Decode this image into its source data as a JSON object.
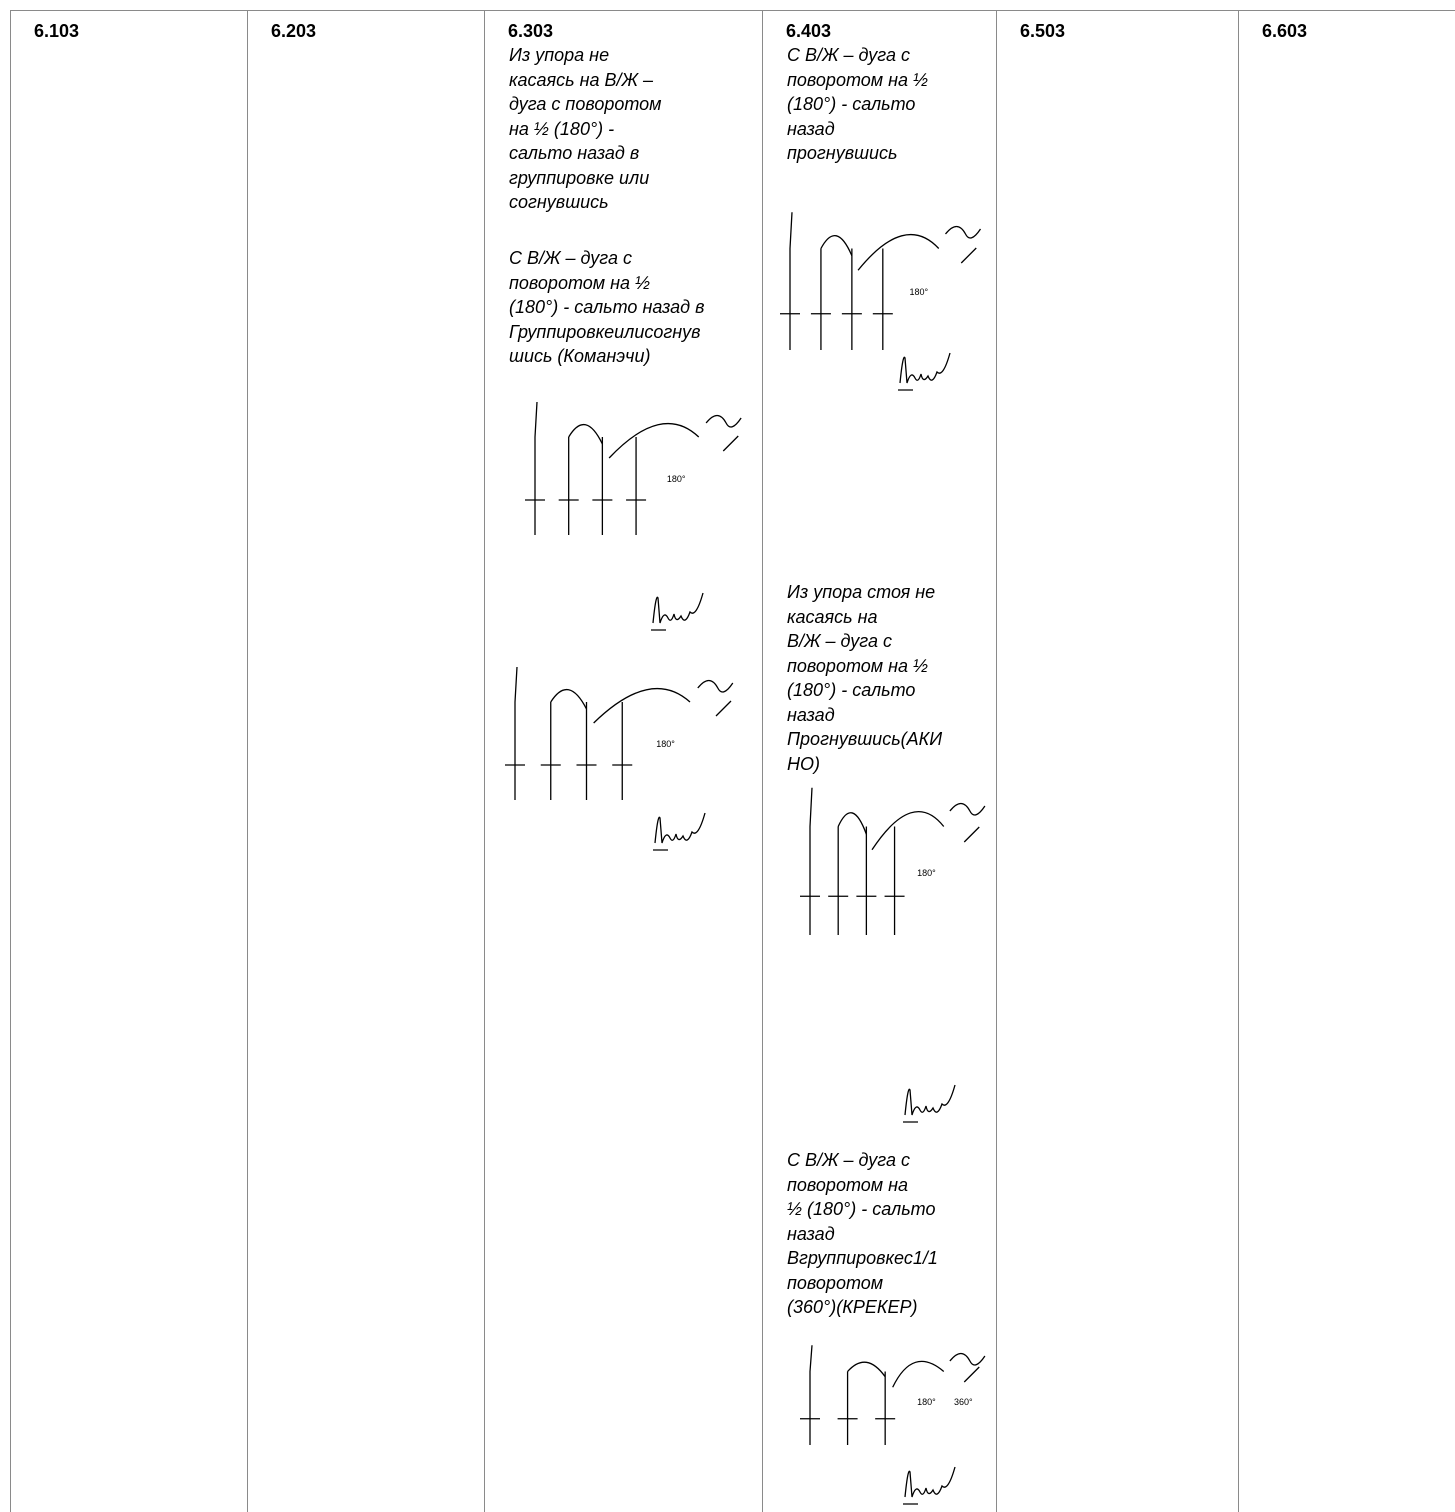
{
  "table": {
    "columns": [
      {
        "code": "6.103"
      },
      {
        "code": "6.203"
      },
      {
        "code": "6.303",
        "entries": [
          {
            "lines": [
              "Из упора не",
              "касаясь на В/Ж –",
              "дуга с поворотом",
              "на ½ (180°) -",
              "сальто назад в",
              "группировке или",
              "согнувшись"
            ]
          },
          {
            "lines": [
              "С В/Ж – дуга с",
              "поворотом на ½",
              "(180°) - сальто назад в",
              "Группировкеилисогнув",
              "шись (Команэчи)"
            ]
          }
        ],
        "figure_labels": [
          "180°",
          "180°"
        ]
      },
      {
        "code": "6.403",
        "entries": [
          {
            "lines": [
              "С В/Ж – дуга с",
              "поворотом на ½",
              "(180°) - сальто",
              "назад",
              "прогнувшись"
            ]
          },
          {
            "lines": [
              "Из упора стоя не",
              "касаясь на",
              "В/Ж – дуга с",
              "поворотом на ½",
              "(180°) - сальто",
              "назад",
              "Прогнувшись(АКИ",
              "НО)"
            ]
          },
          {
            "lines": [
              "С В/Ж – дуга с",
              "поворотом на",
              "½ (180°) - сальто",
              "назад",
              "Вгруппировкес1/1",
              "поворотом",
              "(360°)(КРЕКЕР)"
            ]
          }
        ],
        "figure_labels": [
          "180°",
          "180°",
          "180°",
          "360°"
        ]
      },
      {
        "code": "6.503"
      },
      {
        "code": "6.603"
      }
    ]
  }
}
